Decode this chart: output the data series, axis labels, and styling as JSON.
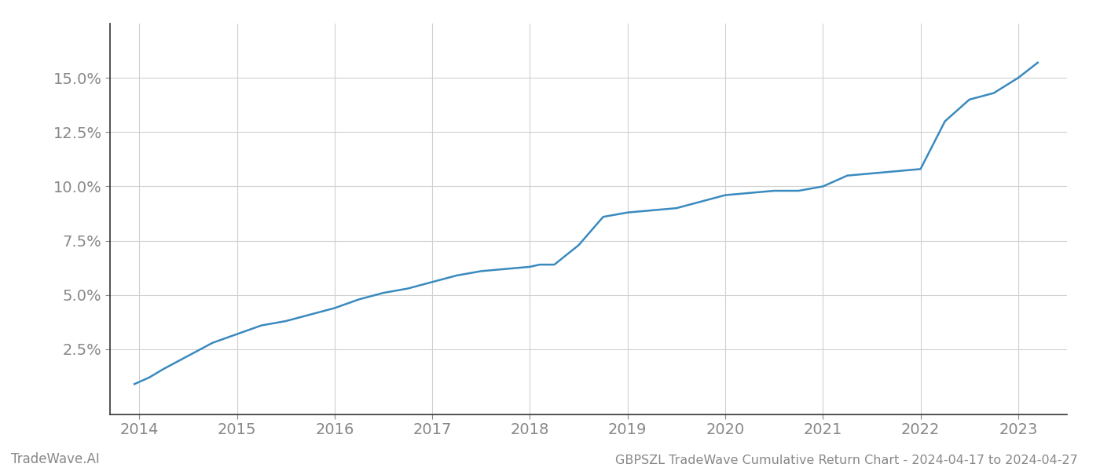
{
  "title": "GBPSZL TradeWave Cumulative Return Chart - 2024-04-17 to 2024-04-27",
  "watermark_left": "TradeWave.AI",
  "line_color": "#3a8abf",
  "background_color": "#ffffff",
  "grid_color": "#d0d0d0",
  "x_values": [
    2013.95,
    2014.1,
    2014.25,
    2014.5,
    2014.75,
    2015.0,
    2015.25,
    2015.5,
    2015.75,
    2016.0,
    2016.25,
    2016.5,
    2016.75,
    2017.0,
    2017.25,
    2017.5,
    2017.75,
    2018.0,
    2018.1,
    2018.25,
    2018.5,
    2018.75,
    2019.0,
    2019.25,
    2019.5,
    2019.75,
    2020.0,
    2020.25,
    2020.5,
    2020.75,
    2021.0,
    2021.1,
    2021.25,
    2021.5,
    2021.75,
    2022.0,
    2022.25,
    2022.5,
    2022.75,
    2023.0,
    2023.2
  ],
  "y_values": [
    0.009,
    0.012,
    0.016,
    0.022,
    0.028,
    0.032,
    0.036,
    0.038,
    0.041,
    0.044,
    0.048,
    0.051,
    0.053,
    0.056,
    0.059,
    0.061,
    0.062,
    0.063,
    0.064,
    0.064,
    0.073,
    0.086,
    0.088,
    0.089,
    0.09,
    0.093,
    0.096,
    0.097,
    0.098,
    0.098,
    0.1,
    0.102,
    0.105,
    0.106,
    0.107,
    0.108,
    0.13,
    0.14,
    0.143,
    0.15,
    0.157
  ],
  "xlim": [
    2013.7,
    2023.5
  ],
  "ylim": [
    -0.005,
    0.175
  ],
  "yticks": [
    0.025,
    0.05,
    0.075,
    0.1,
    0.125,
    0.15
  ],
  "ytick_labels": [
    "2.5%",
    "5.0%",
    "7.5%",
    "10.0%",
    "12.5%",
    "15.0%"
  ],
  "xticks": [
    2014,
    2015,
    2016,
    2017,
    2018,
    2019,
    2020,
    2021,
    2022,
    2023
  ],
  "xtick_labels": [
    "2014",
    "2015",
    "2016",
    "2017",
    "2018",
    "2019",
    "2020",
    "2021",
    "2022",
    "2023"
  ],
  "line_width": 1.8,
  "title_fontsize": 11.5,
  "tick_fontsize": 14,
  "watermark_fontsize": 12
}
